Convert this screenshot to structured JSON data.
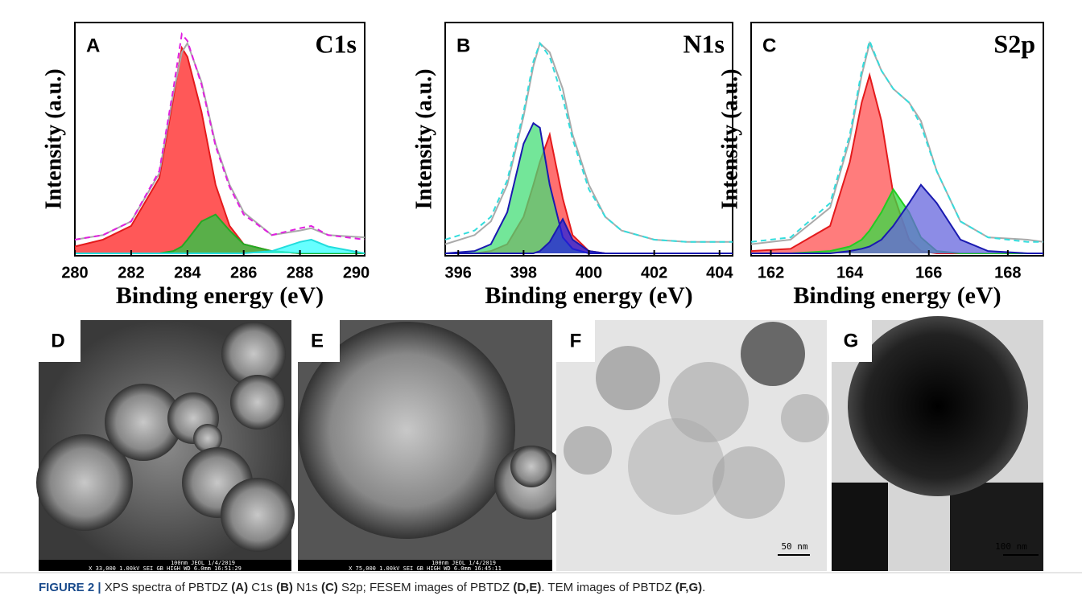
{
  "chart_data": [
    {
      "type": "line",
      "panel": "A",
      "annotation": "C1s",
      "x_label": "Binding energy (eV)",
      "y_label": "Intensity (a.u.)",
      "x": [
        280,
        281,
        282,
        283,
        283.5,
        283.8,
        284,
        284.5,
        285,
        285.5,
        286,
        287,
        288,
        288.4,
        289,
        290.3
      ],
      "xlim": [
        280,
        290.3
      ],
      "xticks": [
        280,
        282,
        284,
        286,
        288,
        290
      ],
      "ylim": [
        0,
        100
      ],
      "series": [
        {
          "color": "#e41a1c",
          "fill": "#ff2020",
          "values": [
            3,
            6,
            12,
            33,
            68,
            90,
            86,
            62,
            30,
            12,
            4,
            1,
            0,
            0,
            0,
            0
          ]
        },
        {
          "color": "#22aa22",
          "fill": "#22cc44",
          "values": [
            0,
            0,
            0,
            0,
            1,
            3,
            6,
            14,
            17,
            10,
            4,
            1,
            0,
            0,
            0,
            0
          ]
        },
        {
          "color": "#22dddd",
          "fill": "#33ffff",
          "values": [
            0,
            0,
            0,
            0,
            0,
            0,
            0,
            0,
            0,
            0,
            0,
            1,
            5,
            6,
            3,
            0
          ]
        },
        {
          "color": "#aaaaaa",
          "values": [
            6,
            8,
            14,
            35,
            70,
            88,
            92,
            75,
            48,
            30,
            18,
            8,
            10,
            11,
            8,
            7
          ]
        },
        {
          "color": "#e020e0",
          "style": "dashed",
          "values": [
            6,
            8,
            14,
            36,
            72,
            96,
            93,
            74,
            47,
            29,
            17,
            8,
            11,
            12,
            8,
            6
          ]
        }
      ]
    },
    {
      "type": "line",
      "panel": "B",
      "annotation": "N1s",
      "x_label": "Binding energy (eV)",
      "y_label": "Intensity (a.u.)",
      "x": [
        395.6,
        396.5,
        397,
        397.5,
        398,
        398.3,
        398.5,
        398.8,
        399.2,
        399.5,
        400,
        400.5,
        401,
        402,
        403,
        404.4
      ],
      "xlim": [
        395.6,
        404.4
      ],
      "xticks": [
        396,
        398,
        400,
        402,
        404
      ],
      "ylim": [
        0,
        100
      ],
      "series": [
        {
          "color": "#e41a1c",
          "fill": "#ff4040",
          "values": [
            0,
            0,
            1,
            4,
            16,
            30,
            40,
            52,
            24,
            8,
            1,
            0,
            0,
            0,
            0,
            0
          ]
        },
        {
          "color": "#1a1ab0",
          "fill": "#44dd77",
          "values": [
            0,
            1,
            4,
            18,
            48,
            57,
            55,
            30,
            7,
            2,
            0,
            0,
            0,
            0,
            0,
            0
          ]
        },
        {
          "color": "#1a1ab0",
          "fill": "#2020dd",
          "values": [
            0,
            0,
            0,
            0,
            0,
            0,
            1,
            5,
            15,
            6,
            1,
            0,
            0,
            0,
            0,
            0
          ]
        },
        {
          "color": "#aaaaaa",
          "values": [
            4,
            8,
            14,
            30,
            60,
            82,
            92,
            88,
            72,
            52,
            30,
            16,
            10,
            6,
            5,
            5
          ]
        },
        {
          "color": "#33dddd",
          "style": "dashed",
          "values": [
            6,
            10,
            16,
            32,
            62,
            84,
            92,
            86,
            68,
            50,
            28,
            16,
            10,
            6,
            5,
            5
          ]
        }
      ]
    },
    {
      "type": "line",
      "panel": "C",
      "annotation": "S2p",
      "x_label": "Binding energy (eV)",
      "y_label": "Intensity (a.u.)",
      "x": [
        161.5,
        162.5,
        163.5,
        164,
        164.3,
        164.5,
        164.8,
        165.1,
        165.5,
        165.8,
        166.2,
        166.8,
        167.5,
        168.5,
        168.9
      ],
      "xlim": [
        161.5,
        168.9
      ],
      "xticks": [
        162,
        164,
        166,
        168
      ],
      "ylim": [
        0,
        100
      ],
      "series": [
        {
          "color": "#e41a1c",
          "fill": "#ff5050",
          "values": [
            1,
            2,
            12,
            40,
            66,
            78,
            58,
            26,
            6,
            1,
            0,
            0,
            0,
            0,
            0
          ]
        },
        {
          "color": "#22cc22",
          "fill": "#33dd44",
          "values": [
            0,
            0,
            1,
            3,
            6,
            10,
            18,
            28,
            18,
            7,
            1,
            0,
            0,
            0,
            0
          ]
        },
        {
          "color": "#1a1ab0",
          "fill": "#6666dd",
          "values": [
            0,
            0,
            0,
            1,
            2,
            3,
            6,
            12,
            22,
            30,
            22,
            6,
            1,
            0,
            0
          ]
        },
        {
          "color": "#aaaaaa",
          "values": [
            4,
            6,
            20,
            50,
            78,
            92,
            80,
            72,
            66,
            58,
            36,
            14,
            7,
            6,
            5
          ]
        },
        {
          "color": "#33dddd",
          "style": "dashed",
          "values": [
            5,
            7,
            22,
            52,
            80,
            93,
            80,
            72,
            66,
            56,
            36,
            14,
            7,
            5,
            5
          ]
        }
      ]
    }
  ],
  "images": [
    {
      "label": "D",
      "bar_top": "100nm JEOL    1/4/2019",
      "bar_bottom": "X 33,000   1.00kV SEI   GB_HIGH  WD 6.0mm  16:51:29"
    },
    {
      "label": "E",
      "bar_top": "100nm JEOL    1/4/2019",
      "bar_bottom": "X 75,000   1.00kV SEI   GB_HIGH  WD 6.0mm  16:45:11"
    },
    {
      "label": "F",
      "scale": "50 nm"
    },
    {
      "label": "G",
      "scale": "100 nm"
    }
  ],
  "caption": [
    {
      "text": "FIGURE 2 |",
      "bold": true
    },
    {
      "text": " XPS spectra of PBTDZ ",
      "bold": false
    },
    {
      "text": "(A)",
      "bold": true
    },
    {
      "text": " C1s ",
      "bold": false
    },
    {
      "text": "(B)",
      "bold": true
    },
    {
      "text": " N1s ",
      "bold": false
    },
    {
      "text": "(C)",
      "bold": true
    },
    {
      "text": " S2p; FESEM images of PBTDZ ",
      "bold": false
    },
    {
      "text": "(D,E)",
      "bold": true
    },
    {
      "text": ". TEM images of PBTDZ ",
      "bold": false
    },
    {
      "text": "(F,G)",
      "bold": true
    },
    {
      "text": ".",
      "bold": false
    }
  ]
}
